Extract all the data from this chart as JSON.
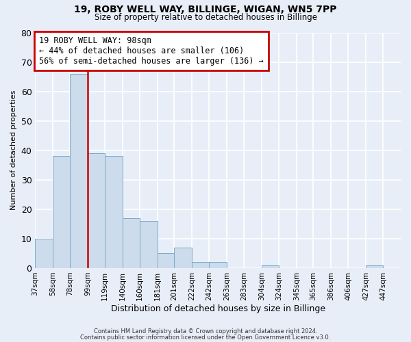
{
  "title1": "19, ROBY WELL WAY, BILLINGE, WIGAN, WN5 7PP",
  "title2": "Size of property relative to detached houses in Billinge",
  "xlabel": "Distribution of detached houses by size in Billinge",
  "ylabel": "Number of detached properties",
  "bar_color": "#ccdcec",
  "bar_edge_color": "#7aaac8",
  "background_color": "#e8eef8",
  "grid_color": "#ffffff",
  "bin_labels": [
    "37sqm",
    "58sqm",
    "78sqm",
    "99sqm",
    "119sqm",
    "140sqm",
    "160sqm",
    "181sqm",
    "201sqm",
    "222sqm",
    "242sqm",
    "263sqm",
    "283sqm",
    "304sqm",
    "324sqm",
    "345sqm",
    "365sqm",
    "386sqm",
    "406sqm",
    "427sqm",
    "447sqm"
  ],
  "bar_heights": [
    10,
    38,
    66,
    39,
    38,
    17,
    16,
    5,
    7,
    2,
    2,
    0,
    0,
    1,
    0,
    0,
    0,
    0,
    0,
    1,
    0
  ],
  "ylim": [
    0,
    80
  ],
  "yticks": [
    0,
    10,
    20,
    30,
    40,
    50,
    60,
    70,
    80
  ],
  "property_line_x": 99,
  "bin_edges_values": [
    37,
    58,
    78,
    99,
    119,
    140,
    160,
    181,
    201,
    222,
    242,
    263,
    283,
    304,
    324,
    345,
    365,
    386,
    406,
    427,
    447,
    468
  ],
  "annotation_text": "19 ROBY WELL WAY: 98sqm\n← 44% of detached houses are smaller (106)\n56% of semi-detached houses are larger (136) →",
  "annotation_box_color": "#ffffff",
  "annotation_box_edge": "#cc0000",
  "vline_color": "#cc0000",
  "footer1": "Contains HM Land Registry data © Crown copyright and database right 2024.",
  "footer2": "Contains public sector information licensed under the Open Government Licence v3.0."
}
